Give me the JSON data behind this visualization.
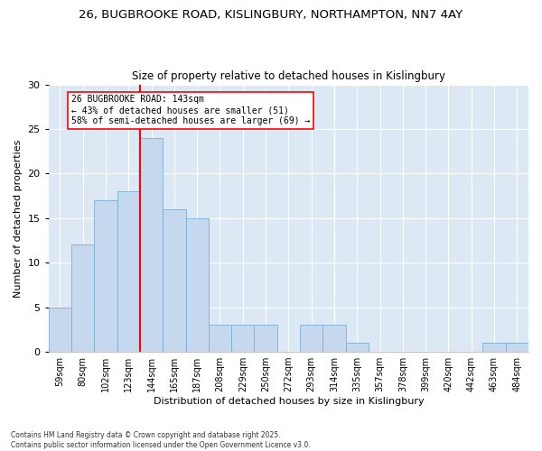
{
  "title1": "26, BUGBROOKE ROAD, KISLINGBURY, NORTHAMPTON, NN7 4AY",
  "title2": "Size of property relative to detached houses in Kislingbury",
  "xlabel": "Distribution of detached houses by size in Kislingbury",
  "ylabel": "Number of detached properties",
  "categories": [
    "59sqm",
    "80sqm",
    "102sqm",
    "123sqm",
    "144sqm",
    "165sqm",
    "187sqm",
    "208sqm",
    "229sqm",
    "250sqm",
    "272sqm",
    "293sqm",
    "314sqm",
    "335sqm",
    "357sqm",
    "378sqm",
    "399sqm",
    "420sqm",
    "442sqm",
    "463sqm",
    "484sqm"
  ],
  "values": [
    5,
    12,
    17,
    18,
    24,
    16,
    15,
    3,
    3,
    3,
    0,
    3,
    3,
    1,
    0,
    0,
    0,
    0,
    0,
    1,
    1
  ],
  "bar_color": "#c5d8ee",
  "bar_edge_color": "#7bafd4",
  "vline_color": "red",
  "annotation_text": "26 BUGBROOKE ROAD: 143sqm\n← 43% of detached houses are smaller (51)\n58% of semi-detached houses are larger (69) →",
  "annotation_box_color": "white",
  "annotation_box_edge_color": "red",
  "ylim": [
    0,
    30
  ],
  "yticks": [
    0,
    5,
    10,
    15,
    20,
    25,
    30
  ],
  "bg_color": "#dce9f5",
  "footer": "Contains HM Land Registry data © Crown copyright and database right 2025.\nContains public sector information licensed under the Open Government Licence v3.0."
}
